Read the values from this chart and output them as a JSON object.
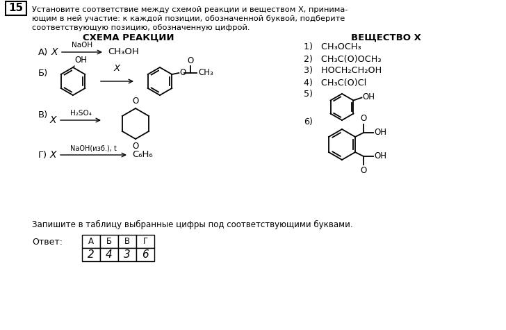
{
  "title_num": "15",
  "bg_color": "#ffffff",
  "text_color": "#000000",
  "col1_header": "СХЕМА РЕАКЦИИ",
  "col2_header": "ВЕЩЕСТВО X",
  "footer_text": "Запишите в таблицу выбранные цифры под соответствующими буквами.",
  "answer_label": "Ответ:",
  "table_headers": [
    "А",
    "Б",
    "В",
    "Г"
  ],
  "table_values": [
    "2",
    "4",
    "3",
    "6"
  ]
}
